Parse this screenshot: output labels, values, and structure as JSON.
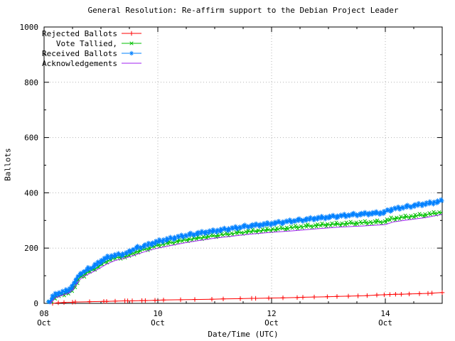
{
  "title": "General Resolution: Re-affirm support to the Debian Project Leader",
  "chart_data": {
    "type": "line",
    "title": "General Resolution: Re-affirm support to the Debian Project Leader",
    "xlabel": "Date/Time (UTC)",
    "ylabel": "Ballots",
    "ylim": [
      0,
      1000
    ],
    "xlim_days": [
      0,
      7
    ],
    "x_axis_note": "x measured in days after 08 Oct 00:00 UTC",
    "grid": true,
    "legend_position": "top-left",
    "colors": {
      "grid": "#b3b3b3",
      "frame": "#000000",
      "rejected": "#ff0000",
      "tallied": "#00c000",
      "received": "#0080ff",
      "acknowledgements": "#a020f0"
    },
    "x_major_ticks": [
      {
        "day": 0,
        "line1": "08",
        "line2": "Oct"
      },
      {
        "day": 2,
        "line1": "10",
        "line2": "Oct"
      },
      {
        "day": 4,
        "line1": "12",
        "line2": "Oct"
      },
      {
        "day": 6,
        "line1": "14",
        "line2": "Oct"
      }
    ],
    "x_minor_step_days": 0.5,
    "y_major_ticks": [
      0,
      200,
      400,
      600,
      800,
      1000
    ],
    "y_minor_step": 100,
    "y_grid_values": [
      200,
      400,
      600,
      800
    ],
    "series": [
      {
        "name": "Rejected Ballots",
        "color": "#ff0000",
        "marker": "plus",
        "marker_mode": "points",
        "points": [
          [
            0.15,
            0
          ],
          [
            0.25,
            2
          ],
          [
            0.35,
            3
          ],
          [
            0.5,
            4
          ],
          [
            0.55,
            5
          ],
          [
            0.8,
            6
          ],
          [
            1.05,
            7
          ],
          [
            1.1,
            7
          ],
          [
            1.25,
            8
          ],
          [
            1.42,
            9
          ],
          [
            1.47,
            9
          ],
          [
            1.55,
            9
          ],
          [
            1.72,
            10
          ],
          [
            1.78,
            10
          ],
          [
            1.95,
            11
          ],
          [
            2.1,
            12
          ],
          [
            2.4,
            13
          ],
          [
            2.65,
            14
          ],
          [
            2.95,
            15
          ],
          [
            3.15,
            16
          ],
          [
            3.45,
            17
          ],
          [
            3.65,
            18
          ],
          [
            3.72,
            18
          ],
          [
            3.95,
            19
          ],
          [
            4.2,
            20
          ],
          [
            4.45,
            21
          ],
          [
            4.55,
            22
          ],
          [
            4.75,
            23
          ],
          [
            4.98,
            24
          ],
          [
            5.15,
            25
          ],
          [
            5.35,
            26
          ],
          [
            5.52,
            27
          ],
          [
            5.68,
            28
          ],
          [
            5.85,
            30
          ],
          [
            5.98,
            31
          ],
          [
            6.08,
            32
          ],
          [
            6.18,
            33
          ],
          [
            6.28,
            33
          ],
          [
            6.42,
            34
          ],
          [
            6.6,
            35
          ],
          [
            6.75,
            36
          ],
          [
            6.82,
            37
          ],
          [
            7.0,
            39
          ]
        ]
      },
      {
        "name": "Vote Tallied,",
        "color": "#00c000",
        "marker": "cross",
        "marker_mode": "dense",
        "points": [
          [
            0.1,
            0
          ],
          [
            0.15,
            14
          ],
          [
            0.22,
            25
          ],
          [
            0.3,
            31
          ],
          [
            0.4,
            37
          ],
          [
            0.47,
            44
          ],
          [
            0.52,
            56
          ],
          [
            0.56,
            72
          ],
          [
            0.62,
            90
          ],
          [
            0.68,
            100
          ],
          [
            0.75,
            110
          ],
          [
            0.85,
            120
          ],
          [
            0.95,
            132
          ],
          [
            1.0,
            140
          ],
          [
            1.08,
            150
          ],
          [
            1.18,
            160
          ],
          [
            1.3,
            166
          ],
          [
            1.45,
            170
          ],
          [
            1.55,
            180
          ],
          [
            1.65,
            188
          ],
          [
            1.78,
            196
          ],
          [
            1.9,
            203
          ],
          [
            2.0,
            210
          ],
          [
            2.2,
            218
          ],
          [
            2.4,
            226
          ],
          [
            2.6,
            233
          ],
          [
            2.8,
            239
          ],
          [
            3.0,
            245
          ],
          [
            3.25,
            251
          ],
          [
            3.5,
            257
          ],
          [
            3.75,
            262
          ],
          [
            4.0,
            267
          ],
          [
            4.25,
            272
          ],
          [
            4.5,
            277
          ],
          [
            4.75,
            281
          ],
          [
            5.0,
            285
          ],
          [
            5.25,
            288
          ],
          [
            5.5,
            291
          ],
          [
            5.75,
            293
          ],
          [
            6.0,
            296
          ],
          [
            6.1,
            305
          ],
          [
            6.3,
            311
          ],
          [
            6.5,
            316
          ],
          [
            6.7,
            321
          ],
          [
            6.85,
            325
          ],
          [
            7.0,
            330
          ]
        ]
      },
      {
        "name": "Received Ballots",
        "color": "#0080ff",
        "marker": "star",
        "marker_mode": "dense",
        "points": [
          [
            0.09,
            0
          ],
          [
            0.1,
            5
          ],
          [
            0.12,
            14
          ],
          [
            0.15,
            22
          ],
          [
            0.18,
            28
          ],
          [
            0.22,
            33
          ],
          [
            0.28,
            38
          ],
          [
            0.35,
            42
          ],
          [
            0.42,
            47
          ],
          [
            0.47,
            55
          ],
          [
            0.52,
            68
          ],
          [
            0.56,
            85
          ],
          [
            0.6,
            98
          ],
          [
            0.65,
            108
          ],
          [
            0.7,
            115
          ],
          [
            0.78,
            124
          ],
          [
            0.88,
            135
          ],
          [
            0.95,
            144
          ],
          [
            1.0,
            152
          ],
          [
            1.06,
            160
          ],
          [
            1.12,
            167
          ],
          [
            1.2,
            172
          ],
          [
            1.32,
            176
          ],
          [
            1.45,
            181
          ],
          [
            1.52,
            190
          ],
          [
            1.6,
            198
          ],
          [
            1.7,
            204
          ],
          [
            1.8,
            210
          ],
          [
            1.9,
            216
          ],
          [
            2.0,
            224
          ],
          [
            2.15,
            231
          ],
          [
            2.3,
            238
          ],
          [
            2.5,
            246
          ],
          [
            2.7,
            253
          ],
          [
            2.9,
            259
          ],
          [
            3.0,
            262
          ],
          [
            3.2,
            268
          ],
          [
            3.4,
            274
          ],
          [
            3.6,
            280
          ],
          [
            3.8,
            284
          ],
          [
            4.0,
            289
          ],
          [
            4.2,
            294
          ],
          [
            4.4,
            299
          ],
          [
            4.6,
            303
          ],
          [
            4.8,
            308
          ],
          [
            5.0,
            312
          ],
          [
            5.2,
            316
          ],
          [
            5.4,
            320
          ],
          [
            5.6,
            323
          ],
          [
            5.8,
            326
          ],
          [
            5.95,
            328
          ],
          [
            6.02,
            333
          ],
          [
            6.1,
            340
          ],
          [
            6.25,
            345
          ],
          [
            6.4,
            350
          ],
          [
            6.55,
            355
          ],
          [
            6.7,
            360
          ],
          [
            6.85,
            365
          ],
          [
            7.0,
            371
          ]
        ]
      },
      {
        "name": "Acknowledgements",
        "color": "#a020f0",
        "marker": "none",
        "marker_mode": "line",
        "points": [
          [
            0.1,
            0
          ],
          [
            0.2,
            20
          ],
          [
            0.3,
            28
          ],
          [
            0.42,
            36
          ],
          [
            0.5,
            48
          ],
          [
            0.56,
            66
          ],
          [
            0.62,
            84
          ],
          [
            0.7,
            98
          ],
          [
            0.8,
            108
          ],
          [
            0.9,
            118
          ],
          [
            1.0,
            130
          ],
          [
            1.1,
            142
          ],
          [
            1.25,
            155
          ],
          [
            1.4,
            163
          ],
          [
            1.55,
            172
          ],
          [
            1.7,
            182
          ],
          [
            1.85,
            192
          ],
          [
            2.0,
            200
          ],
          [
            2.25,
            210
          ],
          [
            2.5,
            220
          ],
          [
            2.75,
            228
          ],
          [
            3.0,
            236
          ],
          [
            3.3,
            243
          ],
          [
            3.6,
            250
          ],
          [
            4.0,
            257
          ],
          [
            4.4,
            263
          ],
          [
            4.8,
            270
          ],
          [
            5.2,
            276
          ],
          [
            5.6,
            280
          ],
          [
            6.0,
            285
          ],
          [
            6.15,
            295
          ],
          [
            6.4,
            302
          ],
          [
            6.7,
            310
          ],
          [
            7.0,
            322
          ]
        ]
      }
    ]
  }
}
